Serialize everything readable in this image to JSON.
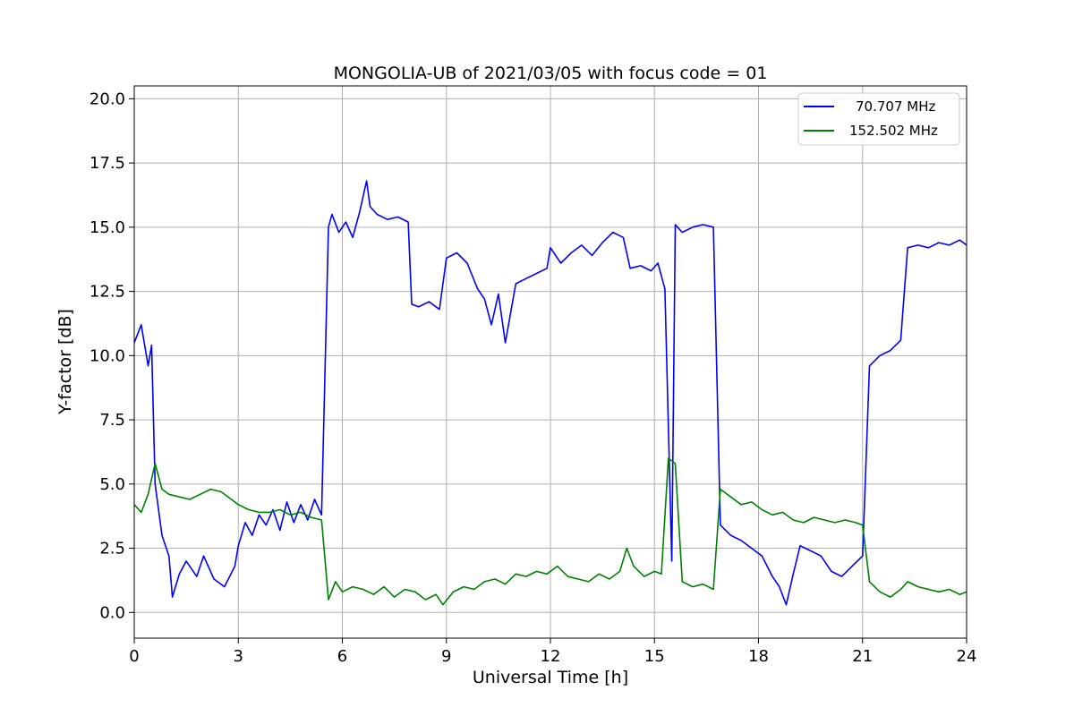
{
  "chart_data": {
    "type": "line",
    "title": "MONGOLIA-UB of 2021/03/05 with focus code = 01",
    "xlabel": "Universal Time [h]",
    "ylabel": "Y-factor [dB]",
    "xlim": [
      0,
      24
    ],
    "ylim": [
      -1,
      20.5
    ],
    "xticks": [
      "0",
      "3",
      "6",
      "9",
      "12",
      "15",
      "18",
      "21",
      "24"
    ],
    "yticks": [
      "0.0",
      "2.5",
      "5.0",
      "7.5",
      "10.0",
      "12.5",
      "15.0",
      "17.5",
      "20.0"
    ],
    "grid": true,
    "legend_position": "top-right",
    "series": [
      {
        "name": "70.707 MHz",
        "color": "#0000ff",
        "x": [
          0,
          0.2,
          0.4,
          0.5,
          0.6,
          0.8,
          1.0,
          1.1,
          1.3,
          1.5,
          1.8,
          2.0,
          2.3,
          2.6,
          2.9,
          3.0,
          3.2,
          3.4,
          3.6,
          3.8,
          4.0,
          4.2,
          4.4,
          4.6,
          4.8,
          5.0,
          5.2,
          5.4,
          5.6,
          5.7,
          5.9,
          6.1,
          6.3,
          6.5,
          6.7,
          6.8,
          7.0,
          7.3,
          7.6,
          7.9,
          8.0,
          8.2,
          8.5,
          8.8,
          9.0,
          9.3,
          9.6,
          9.9,
          10.1,
          10.3,
          10.5,
          10.7,
          11.0,
          11.3,
          11.6,
          11.9,
          12.0,
          12.3,
          12.6,
          12.9,
          13.2,
          13.5,
          13.8,
          14.1,
          14.3,
          14.6,
          14.9,
          15.1,
          15.3,
          15.5,
          15.6,
          15.8,
          16.1,
          16.4,
          16.7,
          16.9,
          17.2,
          17.5,
          17.8,
          18.1,
          18.4,
          18.6,
          18.8,
          19.0,
          19.2,
          19.5,
          19.8,
          20.1,
          20.4,
          20.7,
          21.0,
          21.2,
          21.5,
          21.8,
          22.1,
          22.3,
          22.6,
          22.9,
          23.2,
          23.5,
          23.8,
          24.0
        ],
        "y": [
          10.5,
          11.2,
          9.6,
          10.4,
          5.0,
          3.0,
          2.2,
          0.6,
          1.5,
          2.0,
          1.4,
          2.2,
          1.3,
          1.0,
          1.8,
          2.6,
          3.5,
          3.0,
          3.8,
          3.4,
          4.0,
          3.2,
          4.3,
          3.5,
          4.2,
          3.6,
          4.4,
          3.8,
          15.0,
          15.5,
          14.8,
          15.2,
          14.6,
          15.6,
          16.8,
          15.8,
          15.5,
          15.3,
          15.4,
          15.2,
          12.0,
          11.9,
          12.1,
          11.8,
          13.8,
          14.0,
          13.6,
          12.6,
          12.2,
          11.2,
          12.4,
          10.5,
          12.8,
          13.0,
          13.2,
          13.4,
          14.2,
          13.6,
          14.0,
          14.3,
          13.9,
          14.4,
          14.8,
          14.6,
          13.4,
          13.5,
          13.3,
          13.6,
          12.6,
          2.0,
          15.1,
          14.8,
          15.0,
          15.1,
          15.0,
          3.4,
          3.0,
          2.8,
          2.5,
          2.2,
          1.4,
          1.0,
          0.3,
          1.5,
          2.6,
          2.4,
          2.2,
          1.6,
          1.4,
          1.8,
          2.2,
          9.6,
          10.0,
          10.2,
          10.6,
          14.2,
          14.3,
          14.2,
          14.4,
          14.3,
          14.5,
          14.3
        ]
      },
      {
        "name": "152.502 MHz",
        "color": "#008000",
        "x": [
          0,
          0.2,
          0.4,
          0.6,
          0.8,
          1.0,
          1.3,
          1.6,
          1.9,
          2.2,
          2.5,
          2.8,
          3.0,
          3.3,
          3.6,
          3.9,
          4.2,
          4.5,
          4.8,
          5.1,
          5.4,
          5.6,
          5.8,
          6.0,
          6.3,
          6.6,
          6.9,
          7.2,
          7.5,
          7.8,
          8.1,
          8.4,
          8.7,
          8.9,
          9.2,
          9.5,
          9.8,
          10.1,
          10.4,
          10.7,
          11.0,
          11.3,
          11.6,
          11.9,
          12.2,
          12.5,
          12.8,
          13.1,
          13.4,
          13.7,
          14.0,
          14.2,
          14.4,
          14.7,
          15.0,
          15.2,
          15.4,
          15.6,
          15.8,
          16.1,
          16.4,
          16.7,
          16.9,
          17.2,
          17.5,
          17.8,
          18.1,
          18.4,
          18.7,
          19.0,
          19.3,
          19.6,
          19.9,
          20.2,
          20.5,
          20.8,
          21.0,
          21.2,
          21.5,
          21.8,
          22.1,
          22.3,
          22.6,
          22.9,
          23.2,
          23.5,
          23.8,
          24.0
        ],
        "y": [
          4.2,
          3.9,
          4.6,
          5.8,
          4.8,
          4.6,
          4.5,
          4.4,
          4.6,
          4.8,
          4.7,
          4.4,
          4.2,
          4.0,
          3.9,
          3.9,
          4.0,
          3.8,
          3.9,
          3.7,
          3.6,
          0.5,
          1.2,
          0.8,
          1.0,
          0.9,
          0.7,
          1.0,
          0.6,
          0.9,
          0.8,
          0.5,
          0.7,
          0.3,
          0.8,
          1.0,
          0.9,
          1.2,
          1.3,
          1.1,
          1.5,
          1.4,
          1.6,
          1.5,
          1.8,
          1.4,
          1.3,
          1.2,
          1.5,
          1.3,
          1.6,
          2.5,
          1.8,
          1.4,
          1.6,
          1.5,
          6.0,
          5.8,
          1.2,
          1.0,
          1.1,
          0.9,
          4.8,
          4.5,
          4.2,
          4.3,
          4.0,
          3.8,
          3.9,
          3.6,
          3.5,
          3.7,
          3.6,
          3.5,
          3.6,
          3.5,
          3.4,
          1.2,
          0.8,
          0.6,
          0.9,
          1.2,
          1.0,
          0.9,
          0.8,
          0.9,
          0.7,
          0.8
        ]
      }
    ]
  }
}
